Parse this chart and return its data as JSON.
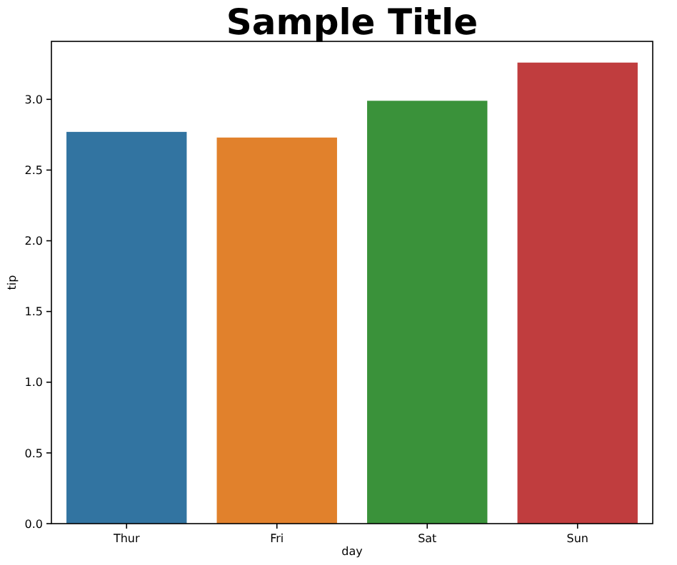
{
  "chart_data": {
    "type": "bar",
    "title": "Sample Title",
    "xlabel": "day",
    "ylabel": "tip",
    "categories": [
      "Thur",
      "Fri",
      "Sat",
      "Sun"
    ],
    "values": [
      2.77,
      2.73,
      2.99,
      3.26
    ],
    "colors": [
      "#3274a1",
      "#e1812c",
      "#3a923a",
      "#c03d3e"
    ],
    "ylim": [
      0,
      3.41
    ],
    "yticks": [
      {
        "value": 0,
        "label": "0.0"
      },
      {
        "value": 0.5,
        "label": "0.5"
      },
      {
        "value": 1,
        "label": "1.0"
      },
      {
        "value": 1.5,
        "label": "1.5"
      },
      {
        "value": 2,
        "label": "2.0"
      },
      {
        "value": 2.5,
        "label": "2.5"
      },
      {
        "value": 3,
        "label": "3.0"
      }
    ],
    "grid": false
  }
}
